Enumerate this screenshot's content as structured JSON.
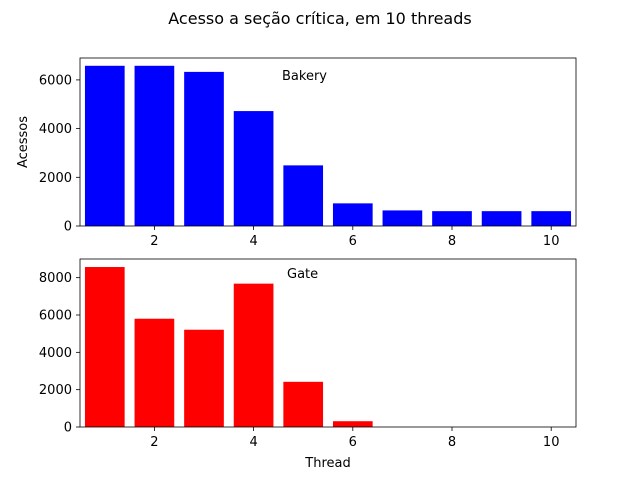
{
  "chart_data": {
    "title": "Acesso a seção crítica, em 10 threads",
    "subplots": [
      {
        "type": "bar",
        "annotation": "Bakery",
        "color": "#0000ff",
        "x": [
          1,
          2,
          3,
          4,
          5,
          6,
          7,
          8,
          9,
          10
        ],
        "values": [
          6580,
          6580,
          6330,
          4720,
          2490,
          930,
          640,
          610,
          610,
          610
        ],
        "xlim": [
          0.5,
          10.5
        ],
        "ylim": [
          0,
          6900
        ],
        "xticks": [
          2,
          4,
          6,
          8,
          10
        ],
        "yticks": [
          0,
          2000,
          4000,
          6000
        ],
        "xlabel": "",
        "ylabel": "Acessos"
      },
      {
        "type": "bar",
        "annotation": "Gate",
        "color": "#ff0000",
        "x": [
          1,
          2,
          3,
          4,
          5,
          6,
          7,
          8,
          9,
          10
        ],
        "values": [
          8570,
          5800,
          5210,
          7680,
          2420,
          310,
          0,
          0,
          0,
          0
        ],
        "xlim": [
          0.5,
          10.5
        ],
        "ylim": [
          0,
          9000
        ],
        "xticks": [
          2,
          4,
          6,
          8,
          10
        ],
        "yticks": [
          0,
          2000,
          4000,
          6000,
          8000
        ],
        "xlabel": "Thread",
        "ylabel": ""
      }
    ]
  }
}
